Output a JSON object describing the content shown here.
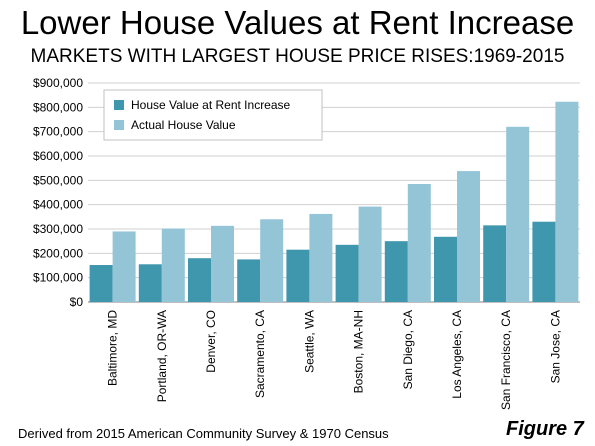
{
  "title": "Lower House Values at Rent Increase",
  "subtitle": "MARKETS WITH LARGEST HOUSE PRICE RISES:1969-2015",
  "footer": "Derived from 2015 American Community Survey & 1970 Census",
  "figure_label": "Figure 7",
  "colors": {
    "series_rent": "#3f97ae",
    "series_actual": "#93c5d6",
    "grid": "#d0d0d0",
    "axis": "#808080"
  },
  "chart_data": {
    "type": "bar",
    "title": "Lower House Values at Rent Increase",
    "subtitle": "MARKETS WITH LARGEST HOUSE PRICE RISES:1969-2015",
    "xlabel": "",
    "ylabel": "",
    "ylim": [
      0,
      900000
    ],
    "yticks": [
      0,
      100000,
      200000,
      300000,
      400000,
      500000,
      600000,
      700000,
      800000,
      900000
    ],
    "ytick_labels": [
      "$0",
      "$100,000",
      "$200,000",
      "$300,000",
      "$400,000",
      "$500,000",
      "$600,000",
      "$700,000",
      "$800,000",
      "$900,000"
    ],
    "grid": true,
    "legend_position": "top-left",
    "categories": [
      "Baltimore, MD",
      "Portland, OR-WA",
      "Denver, CO",
      "Sacramento, CA",
      "Seattle, WA",
      "Boston, MA-NH",
      "San Diego, CA",
      "Los Angeles, CA",
      "San Francisco, CA",
      "San Jose, CA"
    ],
    "series": [
      {
        "name": "House Value at Rent Increase",
        "color": "#3f97ae",
        "values": [
          152000,
          155000,
          180000,
          175000,
          215000,
          235000,
          250000,
          268000,
          315000,
          330000
        ]
      },
      {
        "name": "Actual House Value",
        "color": "#93c5d6",
        "values": [
          290000,
          302000,
          313000,
          340000,
          362000,
          392000,
          485000,
          538000,
          720000,
          823000
        ]
      }
    ]
  }
}
